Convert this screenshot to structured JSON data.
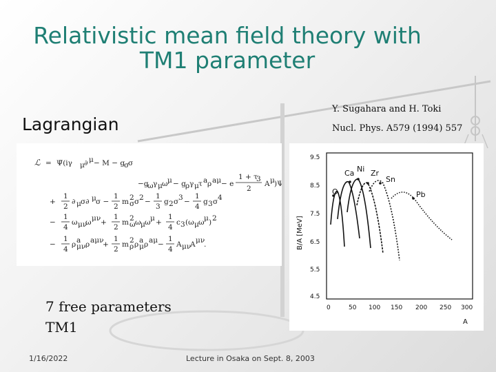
{
  "title_line1": "Relativistic mean field theory with",
  "title_line2": "TM1 parameter",
  "ref_authors": "Y. Sugahara and H. Toki",
  "ref_journal": "Nucl. Phys. A579 (1994) 557",
  "section_label": "Lagrangian",
  "note_line1": "7 free parameters",
  "note_line2": "TM1",
  "footer_date": "1/16/2022",
  "footer_center": "Lecture in Osaka on Sept. 8, 2003",
  "plot": {
    "ylabel": "B/A [MeV]",
    "xlabel": "A",
    "yticks": [
      "9.5",
      "8.5",
      "7.5",
      "6.5",
      "5.5",
      "4.5"
    ],
    "xticks": [
      "0",
      "50",
      "100",
      "150",
      "200",
      "250",
      "300"
    ],
    "nuclei": [
      "O",
      "Ca",
      "Ni",
      "Zr",
      "Sn",
      "Pb"
    ]
  }
}
